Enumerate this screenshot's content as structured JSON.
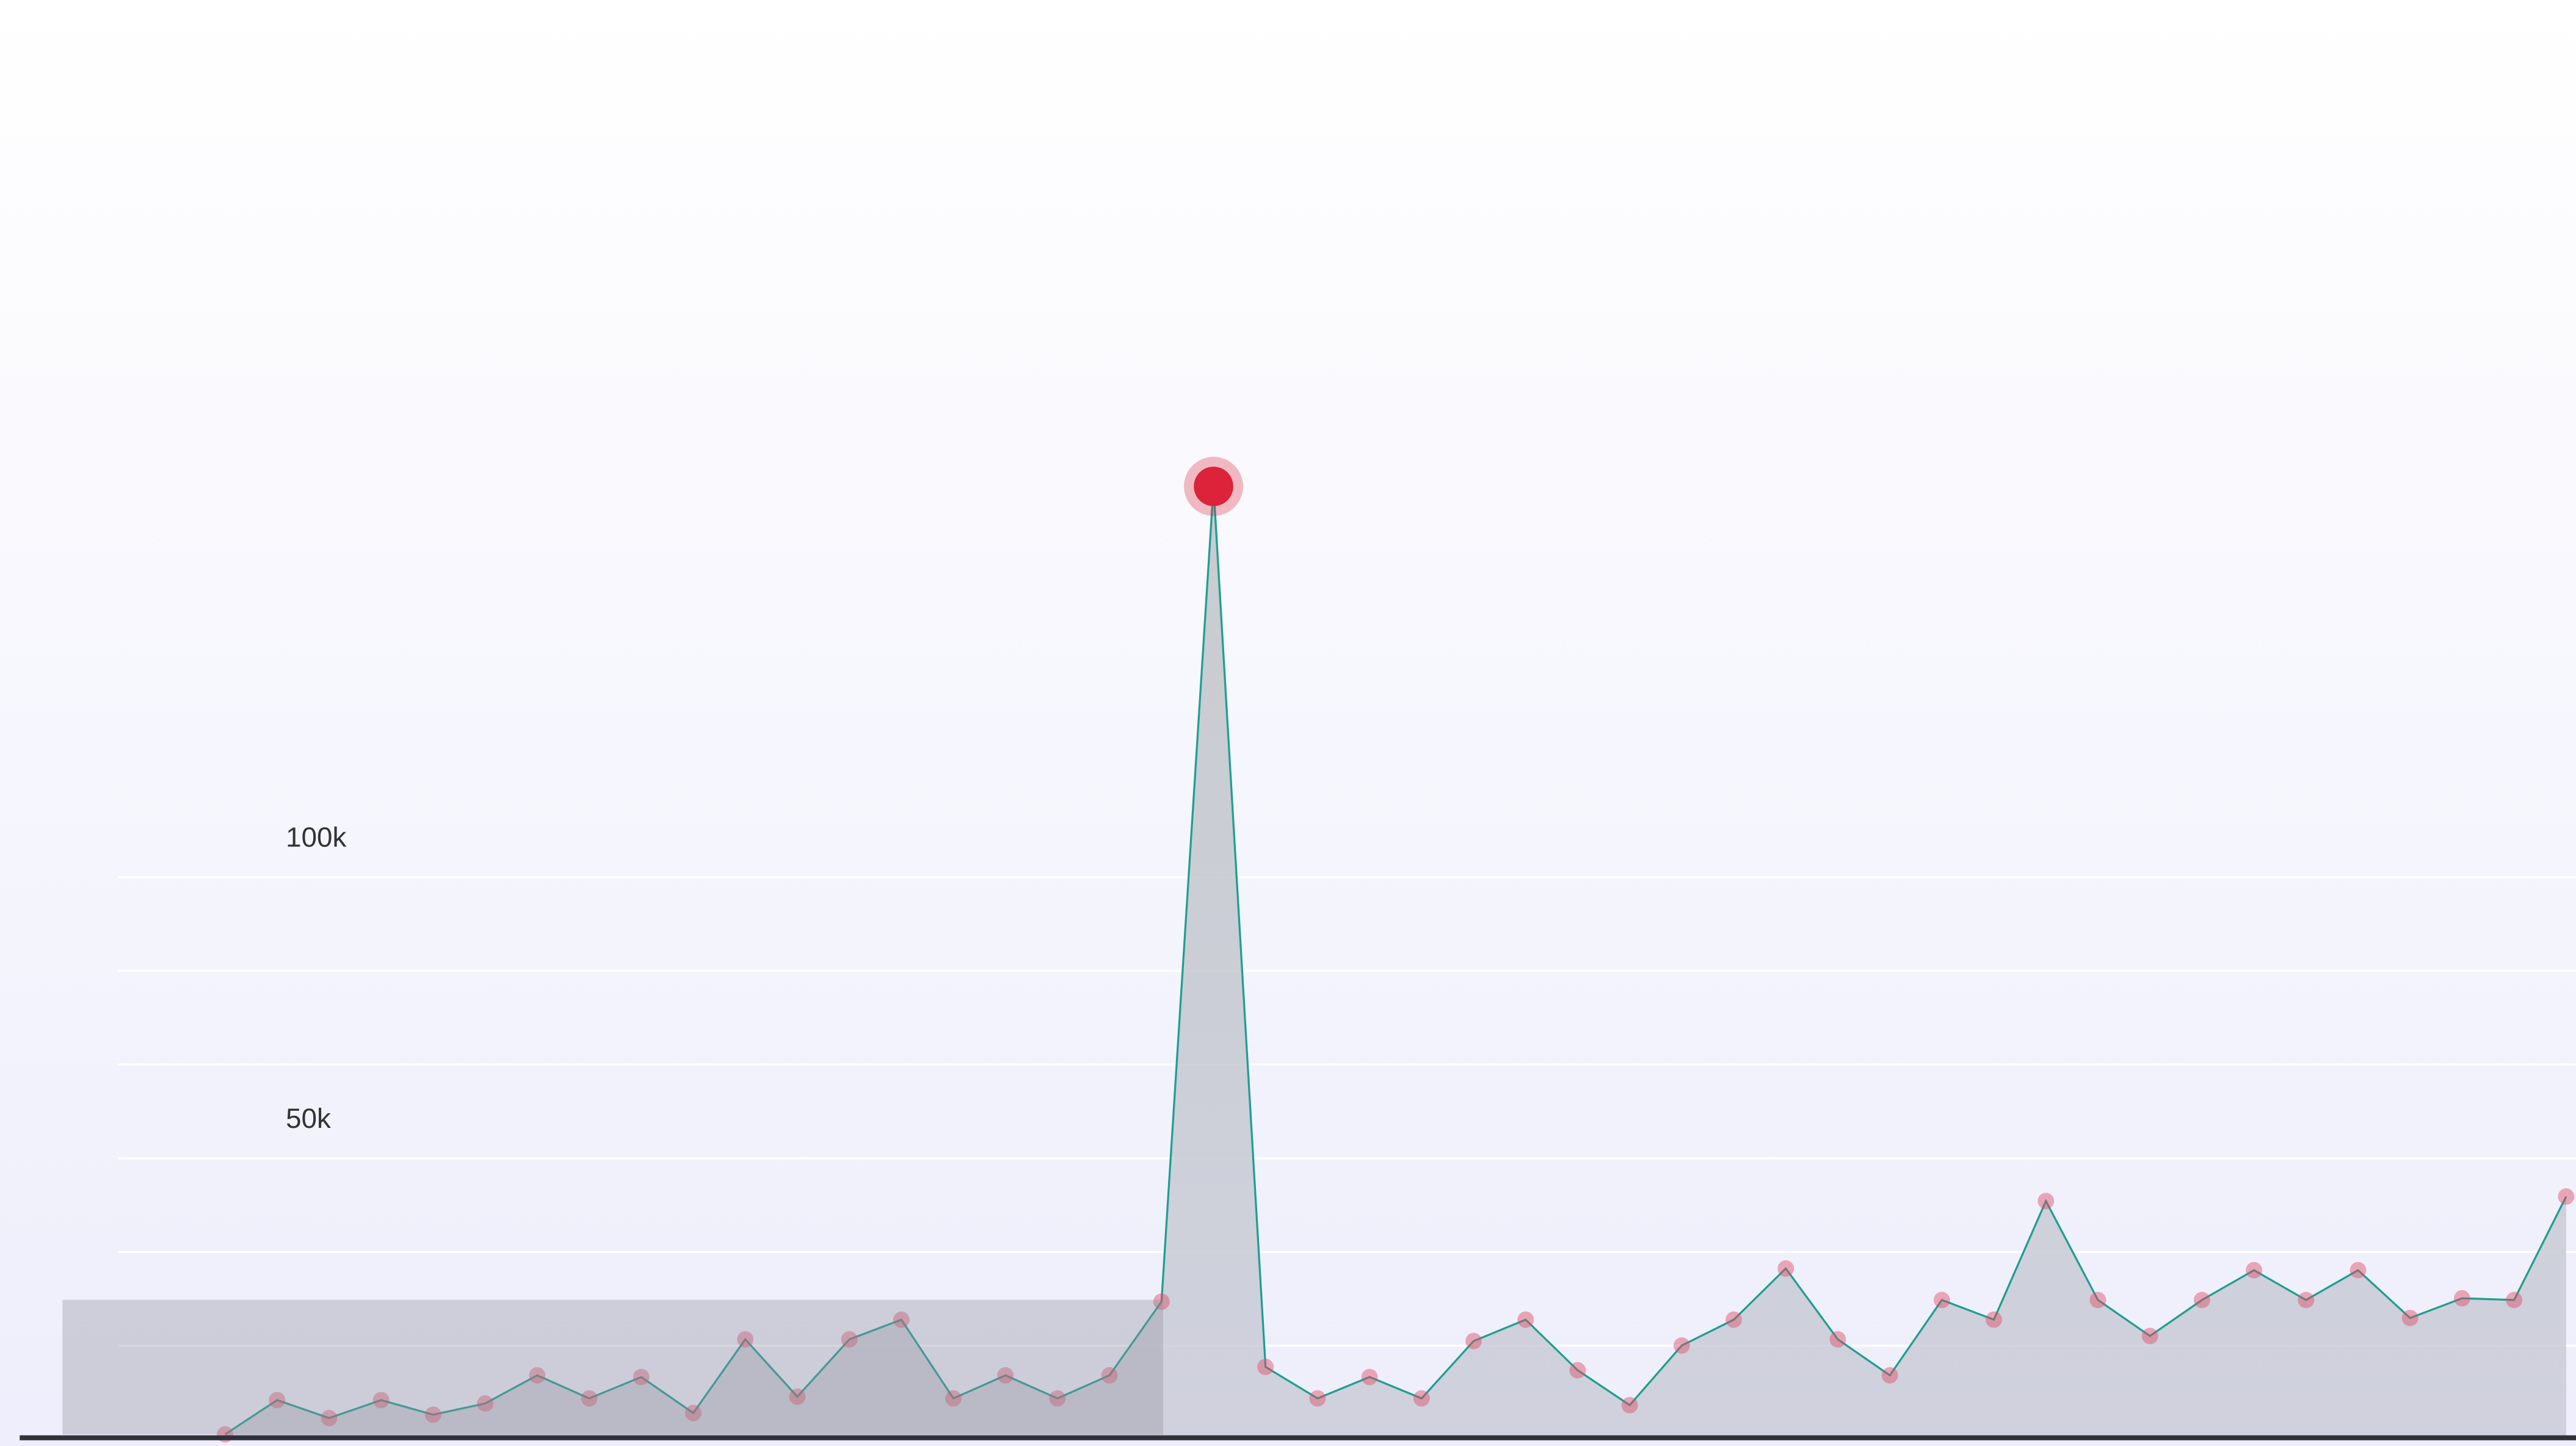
{
  "chart_data": {
    "type": "area",
    "values": [
      900,
      7000,
      3800,
      7000,
      4400,
      6400,
      11400,
      7300,
      11100,
      4700,
      17800,
      7600,
      17800,
      21300,
      7300,
      11400,
      7300,
      11400,
      24500,
      169500,
      12900,
      7300,
      11100,
      7300,
      17500,
      21300,
      12300,
      6100,
      16700,
      21300,
      30400,
      17800,
      11400,
      24800,
      21300,
      42400,
      24800,
      18400,
      24800,
      30100,
      24800,
      30100,
      21600,
      25100,
      24800,
      43200
    ],
    "color": "#1f9e93",
    "marker_color": "#e0495f",
    "highlight_color": "#dc2339",
    "ylim": [
      0,
      256000
    ],
    "yticks": [
      {
        "value": 50000,
        "label": "50k"
      },
      {
        "value": 100000,
        "label": "100k"
      }
    ],
    "minor_yticks": [
      16667,
      33333,
      66667,
      83333
    ],
    "grid": true
  }
}
